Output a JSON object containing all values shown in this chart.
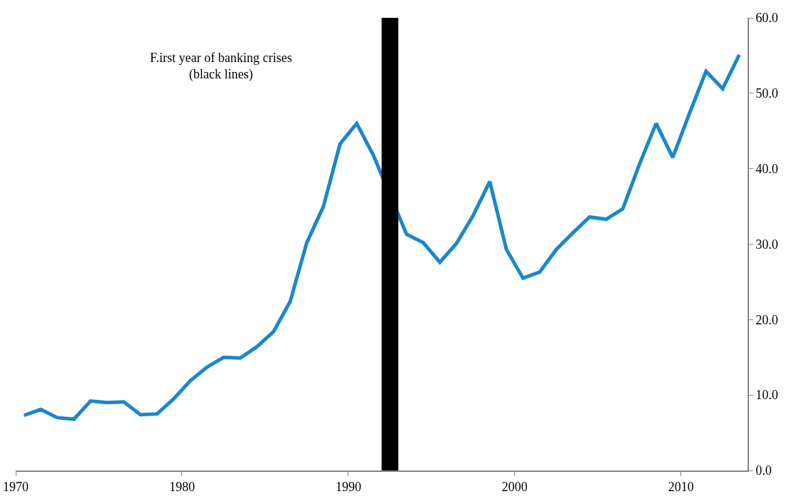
{
  "chart_data": {
    "type": "line",
    "x": [
      1970.5,
      1971.5,
      1972.5,
      1973.5,
      1974.5,
      1975.5,
      1976.5,
      1977.5,
      1978.5,
      1979.5,
      1980.5,
      1981.5,
      1982.5,
      1983.5,
      1984.5,
      1985.5,
      1986.5,
      1987.5,
      1988.5,
      1989.5,
      1990.5,
      1991.5,
      1992.5,
      1993.5,
      1994.5,
      1995.5,
      1996.5,
      1997.5,
      1998.5,
      1999.5,
      2000.5,
      2001.5,
      2002.5,
      2003.5,
      2004.5,
      2005.5,
      2006.5,
      2007.5,
      2008.5,
      2009.5,
      2010.5,
      2011.5,
      2012.5,
      2013.5
    ],
    "series": [
      {
        "color": "#1b87c9",
        "axis": "y2",
        "values": [
          7.3,
          8.1,
          7.0,
          6.8,
          9.2,
          9.0,
          9.1,
          7.4,
          7.5,
          9.5,
          11.9,
          13.7,
          15.0,
          14.9,
          16.4,
          18.4,
          22.4,
          30.2,
          35.0,
          43.3,
          46.0,
          41.8,
          null,
          31.3,
          30.2,
          27.6,
          30.1,
          33.8,
          38.3,
          29.3,
          25.5,
          26.3,
          29.3,
          31.5,
          33.6,
          33.3,
          34.7,
          40.6,
          46.0,
          41.5,
          47.3,
          52.9,
          50.6,
          55.1
        ]
      }
    ],
    "xlim": [
      1970,
      2014
    ],
    "xticks": [
      1970,
      1980,
      1990,
      2000,
      2010
    ],
    "y2lim": [
      0,
      60
    ],
    "y2ticks": [
      {
        "value": 0,
        "label": "0.0"
      },
      {
        "value": 10,
        "label": "10.0"
      },
      {
        "value": 20,
        "label": "20.0"
      },
      {
        "value": 30,
        "label": "30.0"
      },
      {
        "value": 40,
        "label": "40.0"
      },
      {
        "value": 50,
        "label": "50.0"
      },
      {
        "value": 60,
        "label": "60.0"
      }
    ],
    "bands": [
      {
        "axis": "x",
        "from": 1992,
        "to": 1993,
        "color": "#000000"
      }
    ],
    "annotations": [
      "F.irst year of banking crises\n(black lines)"
    ],
    "grid": false,
    "legend": false,
    "marker": "none",
    "line_style": "solid"
  }
}
